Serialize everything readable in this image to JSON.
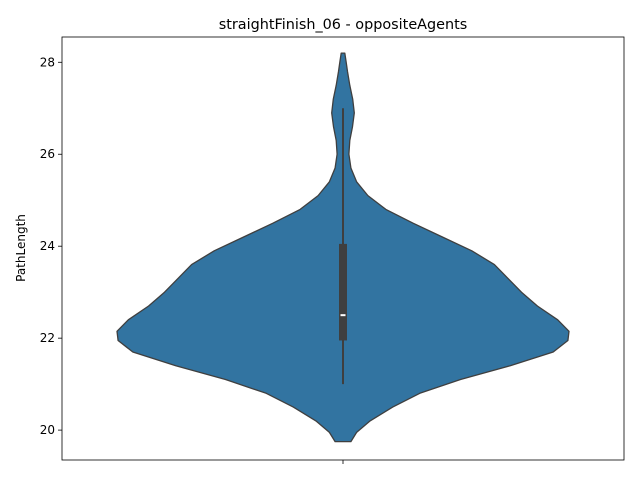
{
  "chart_data": {
    "type": "violin",
    "title": "straightFinish_06 - oppositeAgents",
    "xlabel": "",
    "ylabel": "PathLength",
    "y_ticks": [
      20,
      22,
      24,
      26,
      28
    ],
    "ylim": [
      19.35,
      28.55
    ],
    "x_categories": [
      ""
    ],
    "violin_color": "#3274a1",
    "box_color": "#3f3f3f",
    "median_color": "#ffffff",
    "stats": {
      "min": 21.0,
      "q1": 21.95,
      "median": 22.5,
      "q3": 24.05,
      "max": 27.0,
      "kde_min": 19.75,
      "kde_max": 28.2
    },
    "density_profile": [
      {
        "y": 19.75,
        "w": 0.035
      },
      {
        "y": 19.95,
        "w": 0.06
      },
      {
        "y": 20.2,
        "w": 0.12
      },
      {
        "y": 20.5,
        "w": 0.22
      },
      {
        "y": 20.8,
        "w": 0.34
      },
      {
        "y": 21.1,
        "w": 0.52
      },
      {
        "y": 21.4,
        "w": 0.74
      },
      {
        "y": 21.7,
        "w": 0.93
      },
      {
        "y": 21.95,
        "w": 0.995
      },
      {
        "y": 22.15,
        "w": 1.0
      },
      {
        "y": 22.4,
        "w": 0.95
      },
      {
        "y": 22.7,
        "w": 0.86
      },
      {
        "y": 23.0,
        "w": 0.79
      },
      {
        "y": 23.3,
        "w": 0.73
      },
      {
        "y": 23.6,
        "w": 0.67
      },
      {
        "y": 23.9,
        "w": 0.57
      },
      {
        "y": 24.2,
        "w": 0.44
      },
      {
        "y": 24.5,
        "w": 0.31
      },
      {
        "y": 24.8,
        "w": 0.19
      },
      {
        "y": 25.1,
        "w": 0.11
      },
      {
        "y": 25.4,
        "w": 0.06
      },
      {
        "y": 25.7,
        "w": 0.035
      },
      {
        "y": 26.0,
        "w": 0.026
      },
      {
        "y": 26.3,
        "w": 0.03
      },
      {
        "y": 26.6,
        "w": 0.042
      },
      {
        "y": 26.9,
        "w": 0.05
      },
      {
        "y": 27.2,
        "w": 0.043
      },
      {
        "y": 27.5,
        "w": 0.03
      },
      {
        "y": 27.8,
        "w": 0.02
      },
      {
        "y": 28.0,
        "w": 0.014
      },
      {
        "y": 28.2,
        "w": 0.008
      }
    ]
  }
}
